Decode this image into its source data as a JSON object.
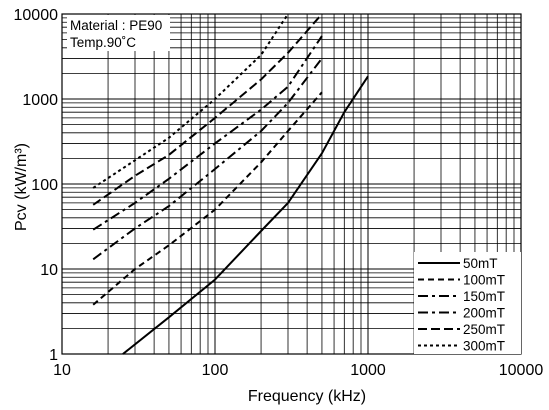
{
  "chart_data": {
    "type": "line",
    "xlabel": "Frequency (kHz)",
    "ylabel": "Pcv (kW/m³)",
    "x_scale": "log",
    "y_scale": "log",
    "xlim": [
      10,
      10000
    ],
    "ylim": [
      1,
      10000
    ],
    "grid": true,
    "legend_position": "bottom-right",
    "annotations": [
      "Material : PE90",
      "Temp.90˚C"
    ],
    "x_ticks": [
      "10",
      "100",
      "1000",
      "10000"
    ],
    "y_ticks": [
      "1",
      "10",
      "100",
      "1000",
      "10000"
    ],
    "series": [
      {
        "name": "50mT",
        "dash": "solid",
        "x": [
          25,
          50,
          100,
          200,
          300,
          500,
          700,
          1000
        ],
        "y": [
          1,
          2.7,
          7.5,
          28,
          60,
          230,
          700,
          1850
        ]
      },
      {
        "name": "100mT",
        "dash": "dash",
        "x": [
          16,
          30,
          50,
          100,
          200,
          300,
          500
        ],
        "y": [
          3.8,
          10,
          19,
          50,
          180,
          420,
          1200
        ]
      },
      {
        "name": "150mT",
        "dash": "dash-dot",
        "x": [
          16,
          30,
          50,
          100,
          200,
          300,
          500
        ],
        "y": [
          13,
          30,
          55,
          150,
          420,
          900,
          3000
        ]
      },
      {
        "name": "200mT",
        "dash": "dash-dot",
        "x": [
          16,
          30,
          50,
          100,
          200,
          300,
          500
        ],
        "y": [
          29,
          60,
          115,
          300,
          750,
          1400,
          5500
        ]
      },
      {
        "name": "250mT",
        "dash": "long-dash",
        "x": [
          16,
          30,
          50,
          100,
          200,
          300,
          500
        ],
        "y": [
          57,
          125,
          220,
          600,
          1700,
          3500,
          10000
        ]
      },
      {
        "name": "300mT",
        "dash": "short-dash",
        "x": [
          16,
          30,
          50,
          100,
          200,
          300
        ],
        "y": [
          90,
          190,
          350,
          1000,
          3300,
          10000
        ]
      }
    ]
  }
}
